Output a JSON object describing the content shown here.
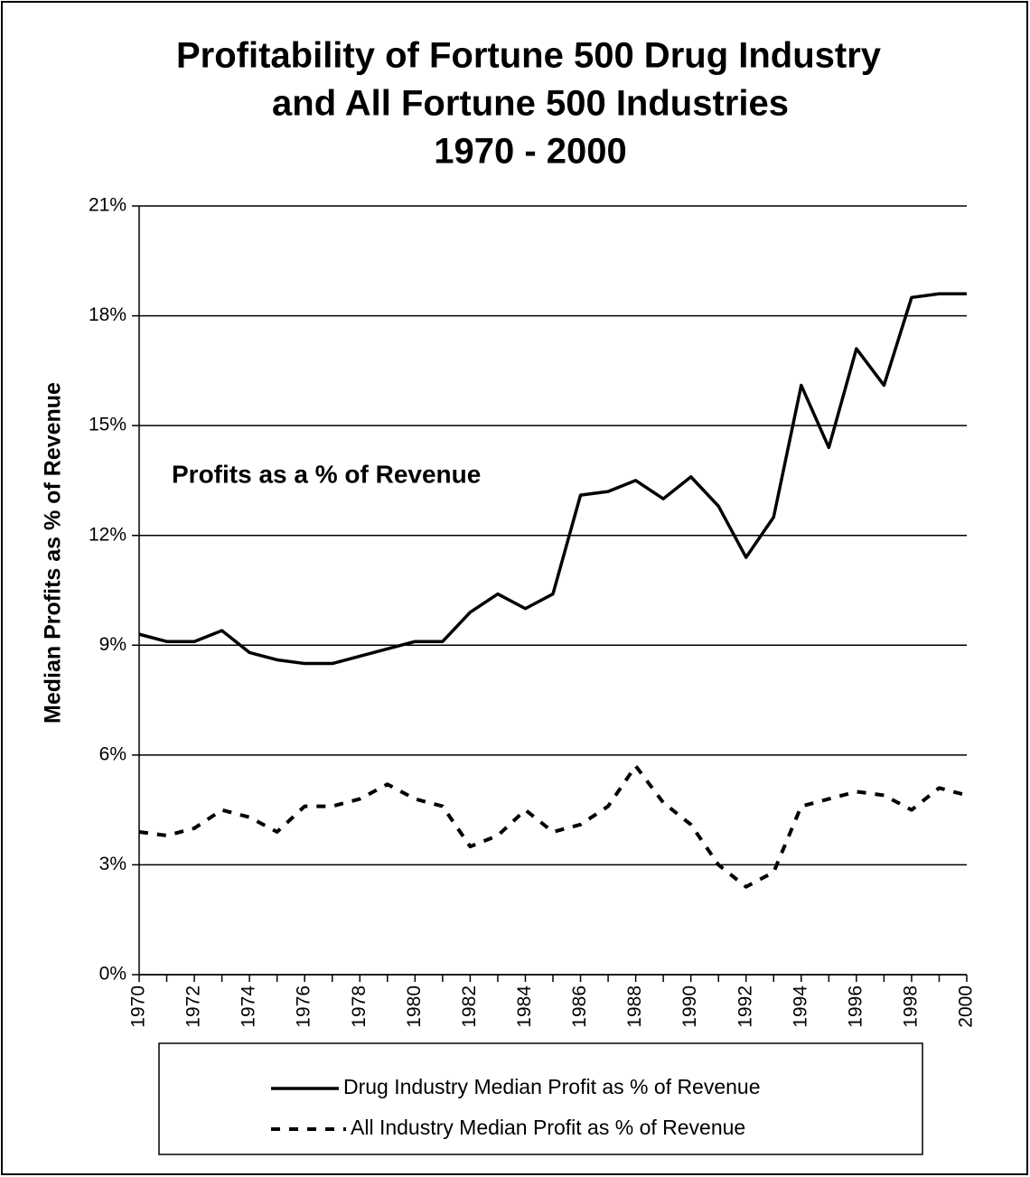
{
  "chart_data": {
    "type": "line",
    "title": [
      "Profitability of Fortune 500 Drug Industry",
      "and All Fortune 500 Industries",
      "1970 - 2000"
    ],
    "ylabel": "Median Profits as % of Revenue",
    "annotation": "Profits as a % of Revenue",
    "x": [
      1970,
      1971,
      1972,
      1973,
      1974,
      1975,
      1976,
      1977,
      1978,
      1979,
      1980,
      1981,
      1982,
      1983,
      1984,
      1985,
      1986,
      1987,
      1988,
      1989,
      1990,
      1991,
      1992,
      1993,
      1994,
      1995,
      1996,
      1997,
      1998,
      1999,
      2000
    ],
    "series": [
      {
        "name": "Drug Industry Median Profit as % of Revenue",
        "color": "#000000",
        "dash": false,
        "values": [
          9.3,
          9.1,
          9.1,
          9.4,
          8.8,
          8.6,
          8.5,
          8.5,
          8.7,
          8.9,
          9.1,
          9.1,
          9.9,
          10.4,
          10.0,
          10.4,
          13.1,
          13.2,
          13.5,
          13.0,
          13.6,
          12.8,
          11.4,
          12.5,
          16.1,
          14.4,
          17.1,
          16.1,
          18.5,
          18.6,
          18.6
        ]
      },
      {
        "name": "All Industry Median Profit as % of Revenue",
        "color": "#000000",
        "dash": true,
        "values": [
          3.9,
          3.8,
          4.0,
          4.5,
          4.3,
          3.9,
          4.6,
          4.6,
          4.8,
          5.2,
          4.8,
          4.6,
          3.5,
          3.8,
          4.5,
          3.9,
          4.1,
          4.6,
          5.7,
          4.7,
          4.1,
          3.0,
          2.4,
          2.8,
          4.6,
          4.8,
          5.0,
          4.9,
          4.5,
          5.1,
          4.9
        ]
      }
    ],
    "xlim": [
      1970,
      2000
    ],
    "xticks": [
      1970,
      1972,
      1974,
      1976,
      1978,
      1980,
      1982,
      1984,
      1986,
      1988,
      1990,
      1992,
      1994,
      1996,
      1998,
      2000
    ],
    "ylim": [
      0,
      21
    ],
    "yticks": [
      {
        "value": 0,
        "label": "0%"
      },
      {
        "value": 3,
        "label": "3%"
      },
      {
        "value": 6,
        "label": "6%"
      },
      {
        "value": 9,
        "label": "9%"
      },
      {
        "value": 12,
        "label": "12%"
      },
      {
        "value": 15,
        "label": "15%"
      },
      {
        "value": 18,
        "label": "18%"
      },
      {
        "value": 21,
        "label": "21%"
      }
    ],
    "grid": true,
    "legend": "bottom"
  }
}
